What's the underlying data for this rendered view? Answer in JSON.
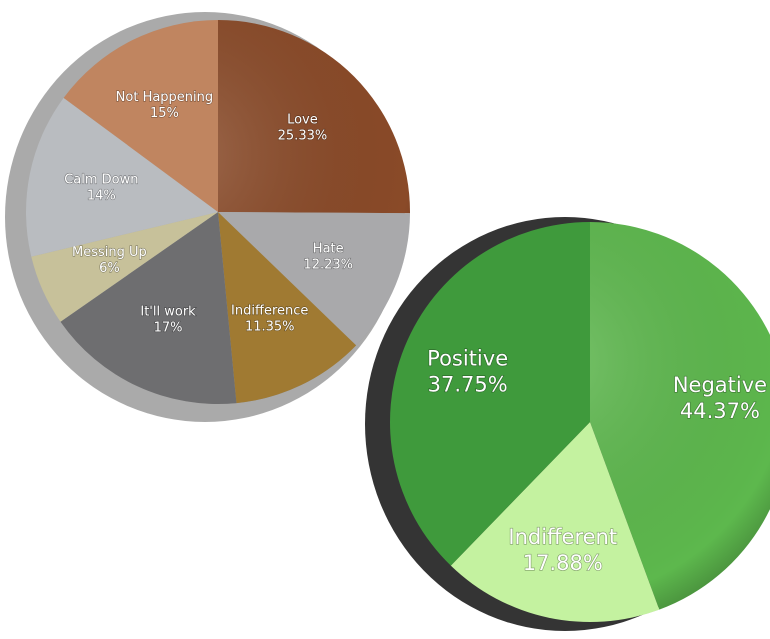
{
  "chart_data": [
    {
      "type": "pie",
      "categories": [
        "Love",
        "Hate",
        "Indifference",
        "It'll work",
        "Messing Up",
        "Calm Down",
        "Not Happening"
      ],
      "values": [
        25.33,
        12.23,
        11.35,
        17,
        6,
        14,
        15
      ],
      "value_labels": [
        "25.33%",
        "12.23%",
        "11.35%",
        "17%",
        "6%",
        "14%",
        "15%"
      ],
      "colors": [
        "#8a4a28",
        "#a9a9ab",
        "#a07a32",
        "#6e6e70",
        "#c7c19a",
        "#b9bcc0",
        "#c08560"
      ]
    },
    {
      "type": "pie",
      "categories": [
        "Negative",
        "Indifferent",
        "Positive"
      ],
      "values": [
        44.37,
        17.88,
        37.75
      ],
      "value_labels": [
        "44.37%",
        "17.88%",
        "37.75%"
      ],
      "colors": [
        "#5db84d",
        "#c4f2a0",
        "#3f9a3c"
      ]
    }
  ]
}
